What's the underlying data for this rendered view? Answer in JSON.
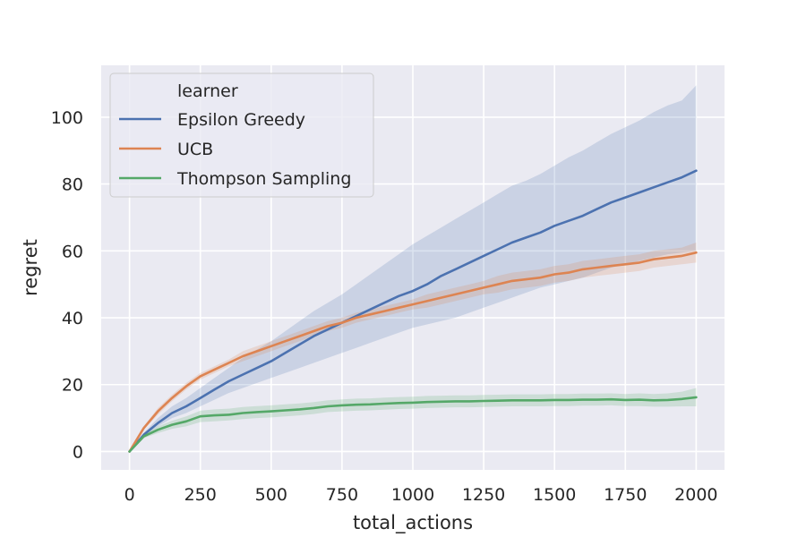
{
  "chart_data": {
    "type": "line",
    "xlabel": "total_actions",
    "ylabel": "regret",
    "xlim": [
      -100,
      2100
    ],
    "ylim": [
      -5.5,
      115.5
    ],
    "xticks": [
      0,
      250,
      500,
      750,
      1000,
      1250,
      1500,
      1750,
      2000
    ],
    "yticks": [
      0,
      20,
      40,
      60,
      80,
      100
    ],
    "grid": true,
    "legend": {
      "title": "learner",
      "placement": "top-left"
    },
    "x": [
      0,
      50,
      100,
      150,
      200,
      250,
      300,
      350,
      400,
      450,
      500,
      550,
      600,
      650,
      700,
      750,
      800,
      850,
      900,
      950,
      1000,
      1050,
      1100,
      1150,
      1200,
      1250,
      1300,
      1350,
      1400,
      1450,
      1500,
      1550,
      1600,
      1650,
      1700,
      1750,
      1800,
      1850,
      1900,
      1950,
      2000
    ],
    "series": [
      {
        "name": "Epsilon Greedy",
        "color": "#4c72b0",
        "values": [
          0,
          5,
          8.5,
          11.5,
          13.5,
          16,
          18.5,
          21,
          23,
          25,
          27,
          29.5,
          32,
          34.5,
          36.5,
          38.5,
          40.5,
          42.5,
          44.5,
          46.5,
          48,
          50,
          52.5,
          54.5,
          56.5,
          58.5,
          60.5,
          62.5,
          64,
          65.5,
          67.5,
          69,
          70.5,
          72.5,
          74.5,
          76,
          77.5,
          79,
          80.5,
          82,
          84
        ],
        "lower": [
          0,
          4.5,
          7.5,
          10,
          11.5,
          13.5,
          15.5,
          17.5,
          19,
          20.5,
          22,
          23.5,
          25,
          26.5,
          28,
          29.5,
          31,
          32.5,
          34,
          35.5,
          37,
          38,
          39,
          40,
          41.5,
          43,
          44.5,
          46,
          47.5,
          49,
          50,
          51,
          52,
          53.5,
          55,
          56,
          57,
          58,
          59,
          59.5,
          60
        ],
        "upper": [
          0,
          5.5,
          10,
          13.5,
          16,
          19,
          22,
          25,
          28,
          30.5,
          33,
          36,
          39,
          42,
          44.5,
          47,
          50,
          53,
          56,
          59,
          62,
          64.5,
          67,
          69.5,
          72,
          74.5,
          77,
          79.5,
          81,
          83,
          85.5,
          88,
          90,
          92.5,
          95,
          97,
          99,
          101.5,
          103.5,
          105,
          109.5
        ]
      },
      {
        "name": "UCB",
        "color": "#dd8452",
        "values": [
          0,
          7,
          12,
          16,
          19.5,
          22.5,
          24.5,
          26.5,
          28.5,
          30,
          31.5,
          33,
          34.5,
          36,
          37.5,
          38.5,
          40,
          41,
          42,
          43,
          44,
          45,
          46,
          47,
          48,
          49,
          50,
          51,
          51.5,
          52,
          53,
          53.5,
          54.5,
          55,
          55.5,
          56,
          56.5,
          57.5,
          58,
          58.5,
          59.5
        ],
        "lower": [
          0,
          6.5,
          11,
          15,
          18.5,
          21.5,
          23.5,
          25.5,
          27,
          28.5,
          30,
          31.5,
          33,
          34.5,
          36,
          37,
          38.5,
          39.5,
          40.5,
          41.5,
          42.5,
          43,
          44,
          45,
          46,
          47,
          47.5,
          48.5,
          49,
          49.5,
          50.5,
          51,
          52,
          52.5,
          53,
          53.5,
          54,
          55,
          55.5,
          56,
          56.5
        ],
        "upper": [
          0,
          7.5,
          13,
          17,
          20.5,
          23.5,
          25.5,
          27.5,
          30,
          31.5,
          33,
          34.5,
          36,
          37.5,
          39,
          40,
          41.5,
          42.5,
          43.5,
          44.5,
          45.5,
          47,
          48,
          49,
          50,
          51,
          52.5,
          53.5,
          54,
          54.5,
          55.5,
          56,
          57,
          57.5,
          58,
          58.5,
          59,
          60,
          60.5,
          61,
          62.5
        ]
      },
      {
        "name": "Thompson Sampling",
        "color": "#55a868",
        "values": [
          0,
          4.5,
          6.5,
          8,
          9,
          10.5,
          10.8,
          11,
          11.5,
          11.8,
          12,
          12.3,
          12.6,
          13,
          13.5,
          13.8,
          14,
          14.1,
          14.3,
          14.5,
          14.6,
          14.8,
          14.9,
          15,
          15,
          15.1,
          15.2,
          15.3,
          15.3,
          15.3,
          15.4,
          15.4,
          15.5,
          15.5,
          15.6,
          15.4,
          15.5,
          15.3,
          15.4,
          15.7,
          16.2
        ],
        "lower": [
          0,
          4,
          5.5,
          6.8,
          7.5,
          8.8,
          9,
          9.3,
          9.7,
          10,
          10.2,
          10.5,
          10.8,
          11.2,
          11.8,
          12,
          12.2,
          12.3,
          12.5,
          12.7,
          12.8,
          13,
          13.1,
          13.2,
          13.2,
          13.3,
          13.4,
          13.5,
          13.5,
          13.5,
          13.6,
          13.6,
          13.7,
          13.7,
          13.8,
          13.6,
          13.6,
          13.4,
          13.4,
          13.5,
          13.5
        ],
        "upper": [
          0,
          5,
          7.5,
          9.2,
          10.5,
          12.2,
          12.6,
          12.8,
          13.3,
          13.6,
          13.8,
          14.1,
          14.4,
          14.8,
          15.3,
          15.6,
          15.8,
          15.9,
          16.1,
          16.3,
          16.4,
          16.6,
          16.7,
          16.8,
          16.8,
          16.9,
          17,
          17.1,
          17.1,
          17.1,
          17.2,
          17.2,
          17.3,
          17.3,
          17.4,
          17.2,
          17.4,
          17.2,
          17.4,
          17.9,
          19
        ]
      }
    ]
  }
}
